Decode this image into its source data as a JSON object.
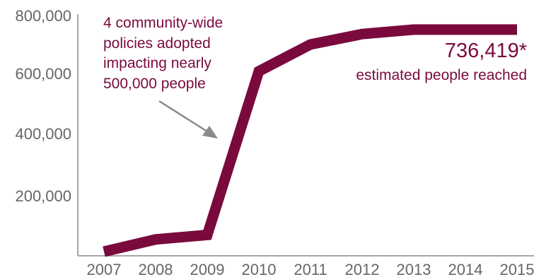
{
  "chart_data": {
    "type": "line",
    "x": [
      "2007",
      "2008",
      "2009",
      "2010",
      "2011",
      "2012",
      "2013",
      "2014",
      "2015"
    ],
    "series": [
      {
        "values": [
          14000,
          55000,
          70000,
          620000,
          710000,
          745000,
          760000,
          760000,
          760000
        ]
      }
    ],
    "y_ticks": [
      "200,000",
      "400,000",
      "600,000",
      "800,000"
    ],
    "ylim": [
      0,
      800000
    ],
    "grid": false,
    "title": "",
    "xlabel": "",
    "ylabel": "",
    "annotations": {
      "policy": [
        "4 community-wide",
        "policies adopted",
        "impacting nearly",
        "500,000 people"
      ],
      "total_value": "736,419*",
      "total_label": "estimated people reached"
    },
    "colors": {
      "line": "#7a0a3e",
      "arrow": "#8a8a8a",
      "axis": "#8a8a8a",
      "text": "#666666"
    }
  }
}
